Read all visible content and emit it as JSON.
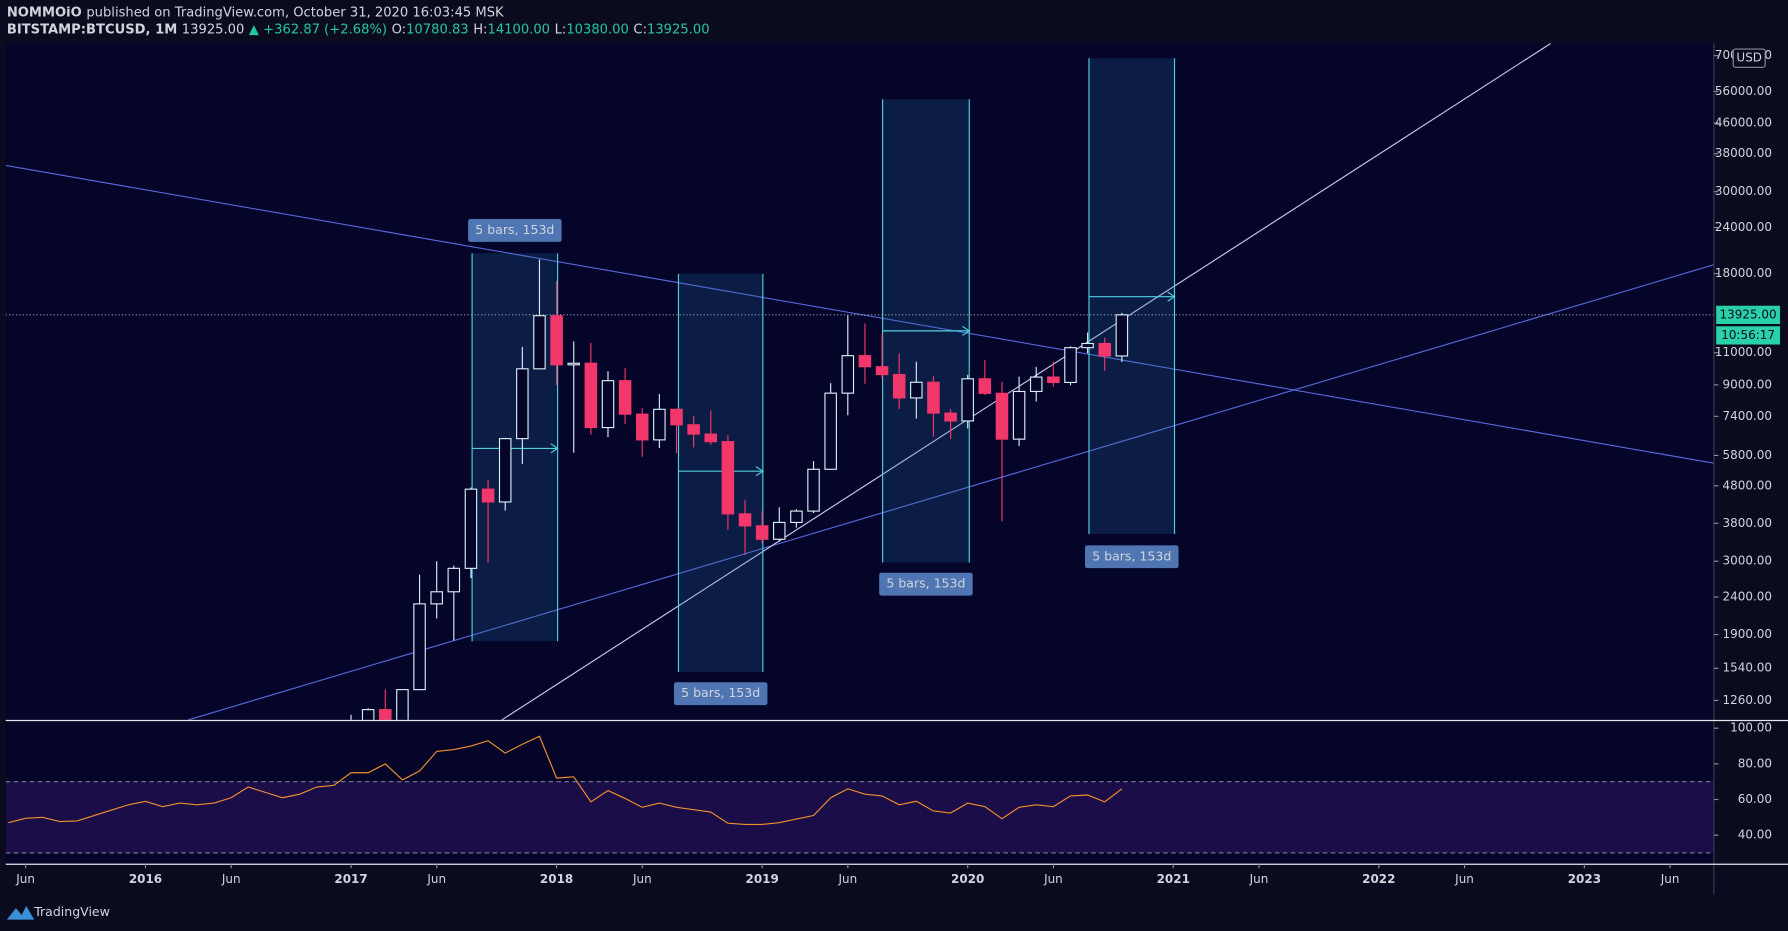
{
  "header": {
    "author": "NOMMOiO",
    "published": "published on TradingView.com, October 31, 2020 16:03:45 MSK",
    "symbol": "BITSTAMP:BTCUSD, 1M",
    "price": "13925.00",
    "change": "▲ +362.87 (+2.68%)",
    "ohlc": [
      {
        "label": "O:",
        "value": "10780.83"
      },
      {
        "label": "H:",
        "value": "14100.00"
      },
      {
        "label": "L:",
        "value": "10380.00"
      },
      {
        "label": "C:",
        "value": "13925.00"
      }
    ]
  },
  "footer": {
    "brand": "TradingView"
  },
  "chart_data": [
    {
      "type": "candlestick",
      "log_scale": true,
      "currency": "USD",
      "xlim": [
        2015.32,
        2023.63
      ],
      "ylim": [
        1116,
        75600
      ],
      "yticks": [
        {
          "value": 1260,
          "label": "1260.00"
        },
        {
          "value": 1540,
          "label": "1540.00"
        },
        {
          "value": 1900,
          "label": "1900.00"
        },
        {
          "value": 2400,
          "label": "2400.00"
        },
        {
          "value": 3000,
          "label": "3000.00"
        },
        {
          "value": 3800,
          "label": "3800.00"
        },
        {
          "value": 4800,
          "label": "4800.00"
        },
        {
          "value": 5800,
          "label": "5800.00"
        },
        {
          "value": 7400,
          "label": "7400.00"
        },
        {
          "value": 9000,
          "label": "9000.00"
        },
        {
          "value": 11000,
          "label": "11000.00"
        },
        {
          "value": 18000,
          "label": "18000.00"
        },
        {
          "value": 24000,
          "label": "24000.00"
        },
        {
          "value": 30000,
          "label": "30000.00"
        },
        {
          "value": 38000,
          "label": "38000.00"
        },
        {
          "value": 46000,
          "label": "46000.00"
        },
        {
          "value": 56000,
          "label": "56000.00"
        },
        {
          "value": 70000,
          "label": "70000.00"
        }
      ],
      "up_color": "#d6eef5",
      "down_color": "#f2376b",
      "last_price": {
        "value": 13925,
        "label": "13925.00"
      },
      "countdown": "10:56:17",
      "annotations": [
        "5 bars, 153d",
        "5 bars, 153d",
        "5 bars, 153d",
        "5 bars, 153d"
      ],
      "x": [
        "2017-01",
        "2017-02",
        "2017-03",
        "2017-04",
        "2017-05",
        "2017-06",
        "2017-07",
        "2017-08",
        "2017-09",
        "2017-10",
        "2017-11",
        "2017-12",
        "2018-01",
        "2018-02",
        "2018-03",
        "2018-04",
        "2018-05",
        "2018-06",
        "2018-07",
        "2018-08",
        "2018-09",
        "2018-10",
        "2018-11",
        "2018-12",
        "2019-01",
        "2019-02",
        "2019-03",
        "2019-04",
        "2019-05",
        "2019-06",
        "2019-07",
        "2019-08",
        "2019-09",
        "2019-10",
        "2019-11",
        "2019-12",
        "2020-01",
        "2020-02",
        "2020-03",
        "2020-04",
        "2020-05",
        "2020-06",
        "2020-07",
        "2020-08",
        "2020-09",
        "2020-10"
      ],
      "open": [
        964,
        965,
        1190,
        1080,
        1348,
        2300,
        2480,
        2870,
        4700,
        4340,
        6440,
        9950,
        13850,
        10200,
        10300,
        6900,
        9240,
        7500,
        6390,
        7730,
        7020,
        6625,
        6320,
        4030,
        3740,
        3440,
        3820,
        4100,
        5320,
        8550,
        10800,
        10080,
        9600,
        8300,
        9150,
        7550,
        7190,
        9350,
        8540,
        6420,
        8640,
        9450,
        9140,
        11350,
        11650,
        10780
      ],
      "high": [
        1153,
        1200,
        1350,
        1350,
        2760,
        3000,
        2920,
        4750,
        4980,
        6470,
        11400,
        19660,
        17200,
        11800,
        11700,
        9800,
        9990,
        7780,
        8500,
        7760,
        7400,
        7680,
        6580,
        4400,
        4100,
        4200,
        4150,
        5600,
        9100,
        13880,
        13200,
        12330,
        10950,
        10400,
        9500,
        7750,
        9590,
        10500,
        9180,
        9470,
        10070,
        10400,
        11450,
        12480,
        12070,
        14100
      ],
      "low": [
        755,
        915,
        890,
        1060,
        1345,
        2100,
        1830,
        2700,
        2970,
        4110,
        5500,
        10400,
        9000,
        5900,
        6600,
        6500,
        7050,
        5750,
        6070,
        5880,
        6100,
        6200,
        3650,
        3120,
        3350,
        3390,
        3700,
        4050,
        5320,
        7450,
        9070,
        9350,
        7750,
        7300,
        6520,
        6430,
        6860,
        8450,
        3850,
        6150,
        8110,
        8900,
        8980,
        10960,
        9830,
        10380
      ],
      "close": [
        965,
        1190,
        1080,
        1348,
        2300,
        2480,
        2870,
        4700,
        4340,
        6440,
        9950,
        13850,
        10200,
        10300,
        6900,
        9240,
        7500,
        6390,
        7730,
        7020,
        6625,
        6320,
        4030,
        3740,
        3440,
        3820,
        4100,
        5320,
        8550,
        10800,
        10080,
        9600,
        8300,
        9150,
        7550,
        7190,
        9350,
        8540,
        6420,
        8640,
        9450,
        9140,
        11350,
        11650,
        10780,
        13925
      ]
    },
    {
      "type": "line",
      "xlim": [
        2015.32,
        2023.63
      ],
      "ylim": [
        24,
        104
      ],
      "yticks": [
        {
          "value": 40,
          "label": "40.00"
        },
        {
          "value": 60,
          "label": "60.00"
        },
        {
          "value": 80,
          "label": "80.00"
        },
        {
          "value": 100,
          "label": "100.00"
        }
      ],
      "bands": [
        30,
        70
      ],
      "color": "#f0902a",
      "xticks": [
        {
          "value": 2015.417,
          "label": "Jun"
        },
        2016,
        {
          "value": 2016.417,
          "label": "Jun"
        },
        2017,
        {
          "value": 2017.417,
          "label": "Jun"
        },
        2018,
        {
          "value": 2018.417,
          "label": "Jun"
        },
        2019,
        {
          "value": 2019.417,
          "label": "Jun"
        },
        2020,
        {
          "value": 2020.417,
          "label": "Jun"
        },
        2021,
        {
          "value": 2021.417,
          "label": "Jun"
        },
        2022,
        {
          "value": 2022.417,
          "label": "Jun"
        },
        2023,
        {
          "value": 2023.417,
          "label": "Jun"
        }
      ],
      "x": [
        "2015-05",
        "2015-06",
        "2015-07",
        "2015-08",
        "2015-09",
        "2015-10",
        "2015-11",
        "2015-12",
        "2016-01",
        "2016-02",
        "2016-03",
        "2016-04",
        "2016-05",
        "2016-06",
        "2016-07",
        "2016-08",
        "2016-09",
        "2016-10",
        "2016-11",
        "2016-12",
        "2017-01",
        "2017-02",
        "2017-03",
        "2017-04",
        "2017-05",
        "2017-06",
        "2017-07",
        "2017-08",
        "2017-09",
        "2017-10",
        "2017-11",
        "2017-12",
        "2018-01",
        "2018-02",
        "2018-03",
        "2018-04",
        "2018-05",
        "2018-06",
        "2018-07",
        "2018-08",
        "2018-09",
        "2018-10",
        "2018-11",
        "2018-12",
        "2019-01",
        "2019-02",
        "2019-03",
        "2019-04",
        "2019-05",
        "2019-06",
        "2019-07",
        "2019-08",
        "2019-09",
        "2019-10",
        "2019-11",
        "2019-12",
        "2020-01",
        "2020-02",
        "2020-03",
        "2020-04",
        "2020-05",
        "2020-06",
        "2020-07",
        "2020-08",
        "2020-09",
        "2020-10"
      ],
      "values": [
        47,
        49.5,
        50,
        47.6,
        48,
        51,
        54,
        57,
        59,
        56,
        58,
        57,
        58,
        61,
        67,
        64,
        61,
        63,
        67,
        68,
        75,
        75,
        80,
        71,
        76,
        87,
        88,
        90,
        93,
        86,
        91,
        95.5,
        72,
        72.7,
        58.7,
        65,
        60.6,
        55.6,
        58,
        55.6,
        54.3,
        53,
        46.7,
        46,
        46,
        47,
        49,
        51,
        61,
        66,
        63,
        62,
        57,
        59,
        53.6,
        52.4,
        58,
        56,
        49.2,
        55.6,
        57,
        56,
        62,
        62.5,
        58.7,
        66
      ]
    }
  ]
}
